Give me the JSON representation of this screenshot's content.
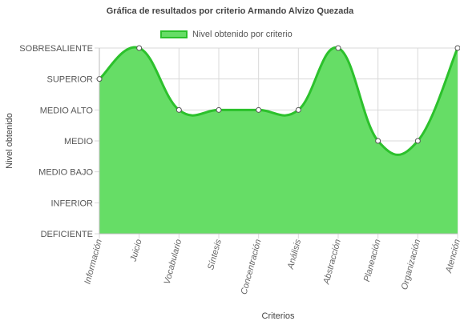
{
  "chart_data": {
    "type": "area",
    "title": "Gráfica de resultados por criterio Armando Alvizo Quezada",
    "xlabel": "Criterios",
    "ylabel": "Nivel obtenido",
    "categories": [
      "Información",
      "Juicio",
      "Vocabulario",
      "Síntesis",
      "Concentración",
      "Análisis",
      "Abstracción",
      "Planeación",
      "Organización",
      "Atención"
    ],
    "y_levels": [
      "DEFICIENTE",
      "INFERIOR",
      "MEDIO BAJO",
      "MEDIO",
      "MEDIO ALTO",
      "SUPERIOR",
      "SOBRESALIENTE"
    ],
    "series": [
      {
        "name": "Nivel obtenido por criterio",
        "values": [
          "SUPERIOR",
          "SOBRESALIENTE",
          "MEDIO ALTO",
          "MEDIO ALTO",
          "MEDIO ALTO",
          "MEDIO ALTO",
          "SOBRESALIENTE",
          "MEDIO",
          "MEDIO",
          "SOBRESALIENTE"
        ]
      }
    ],
    "grid": true,
    "legend_position": "top",
    "colors": {
      "fill": "#66dd66",
      "line": "#2cc12c",
      "grid": "#d9d9d9"
    }
  }
}
